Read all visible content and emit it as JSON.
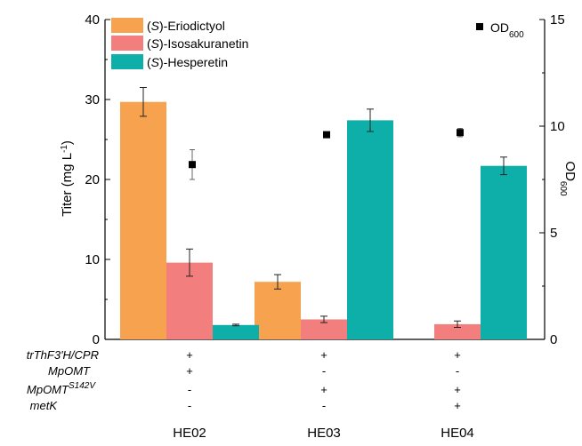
{
  "chart_data": {
    "type": "bar",
    "categories": [
      "HE02",
      "HE03",
      "HE04"
    ],
    "series": [
      {
        "name": "(2S)-Eriodictyol",
        "values": [
          29.7,
          7.2,
          0
        ],
        "errors": [
          1.8,
          0.9,
          0
        ],
        "color": "#F7A24F"
      },
      {
        "name": "(2S)-Isosakuranetin",
        "values": [
          9.6,
          2.5,
          1.9
        ],
        "errors": [
          1.7,
          0.4,
          0.4
        ],
        "color": "#F27E7E"
      },
      {
        "name": "(2S)-Hesperetin",
        "values": [
          1.8,
          27.4,
          21.7
        ],
        "errors": [
          0.1,
          1.4,
          1.1
        ],
        "color": "#0EAFA8"
      }
    ],
    "od600": {
      "name": "OD600",
      "values": [
        8.2,
        9.6,
        9.7
      ],
      "errors": [
        0.7,
        0,
        0.2
      ]
    },
    "ylabel_left": "Titer (mg L-1)",
    "ylabel_right": "OD600",
    "ylim_left": [
      0,
      40
    ],
    "ylim_right": [
      0,
      15
    ],
    "yticks_left": [
      "0",
      "10",
      "20",
      "30",
      "40"
    ],
    "yticks_right": [
      "0",
      "5",
      "10",
      "15"
    ],
    "legend_position": "top-left"
  },
  "legend_parts": {
    "s": "S",
    "eriodictyol": ")-Eriodictyol",
    "isosakuranetin": ")-Isosakuranetin",
    "hesperetin": ")-Hesperetin",
    "od": "OD",
    "od_sub": "600"
  },
  "axis_text": {
    "titer_main": "Titer (mg L",
    "titer_exp": "-1",
    "od_main": "OD",
    "od_sub": "600"
  },
  "genotype_table": {
    "rows": [
      {
        "label": "trThF3'H/CPR",
        "sup": "",
        "values": [
          "+",
          "+",
          "+"
        ]
      },
      {
        "label": "MpOMT",
        "sup": "",
        "values": [
          "+",
          "-",
          "-"
        ]
      },
      {
        "label": "MpOMT",
        "sup": "S142V",
        "values": [
          "-",
          "+",
          "+"
        ]
      },
      {
        "label": "metK",
        "sup": "",
        "values": [
          "-",
          "-",
          "+"
        ]
      }
    ]
  }
}
